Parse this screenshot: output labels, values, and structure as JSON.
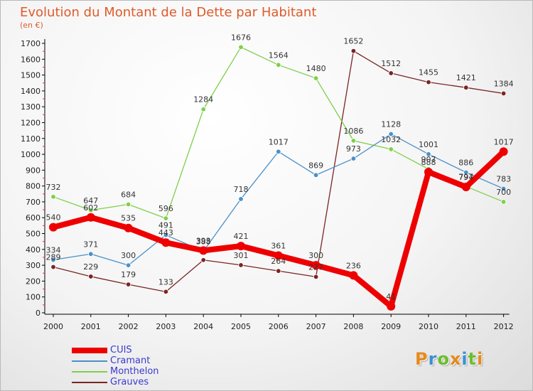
{
  "title": "Evolution du Montant de la Dette par Habitant",
  "unit": "(en €)",
  "logo": {
    "text": "Proxiti",
    "colors": [
      "#e68a1e",
      "#3b8fd1",
      "#6cbd2f",
      "#e68a1e",
      "#3b8fd1",
      "#6cbd2f",
      "#e68a1e"
    ]
  },
  "chart_data": {
    "type": "line",
    "title": "Evolution du Montant de la Dette par Habitant",
    "ylabel": "(en €)",
    "xlabel": "",
    "ylim": [
      0,
      1700
    ],
    "yticks": [
      0,
      100,
      200,
      300,
      400,
      500,
      600,
      700,
      800,
      900,
      1000,
      1100,
      1200,
      1300,
      1400,
      1500,
      1600,
      1700
    ],
    "x": [
      "2000",
      "2001",
      "2002",
      "2003",
      "2004",
      "2005",
      "2006",
      "2007",
      "2008",
      "2009",
      "2010",
      "2011",
      "2012"
    ],
    "legend_position": "bottom-left",
    "grid": false,
    "series": [
      {
        "name": "CUIS",
        "color": "#ee0000",
        "values": [
          540,
          602,
          535,
          443,
          393,
          421,
          361,
          300,
          236,
          41,
          888,
          794,
          1017
        ],
        "labels": [
          "540",
          "602",
          "535",
          "443",
          "393",
          "421",
          "361",
          "300",
          "236",
          "41",
          "888",
          "794",
          "1017"
        ]
      },
      {
        "name": "Cramant",
        "color": "#4a90c8",
        "values": [
          334,
          371,
          300,
          491,
          388,
          718,
          1017,
          869,
          973,
          1128,
          1001,
          886,
          783
        ],
        "labels": [
          "334",
          "371",
          "300",
          "491",
          "388",
          "718",
          "1017",
          "869",
          "973",
          "1128",
          "1001",
          "886",
          "783"
        ]
      },
      {
        "name": "Monthelon",
        "color": "#7ed04a",
        "values": [
          732,
          647,
          684,
          596,
          1284,
          1676,
          1564,
          1480,
          1086,
          1032,
          907,
          797,
          700
        ],
        "labels": [
          "732",
          "647",
          "684",
          "596",
          "1284",
          "1676",
          "1564",
          "1480",
          "1086",
          "1032",
          "907",
          "797",
          "700"
        ]
      },
      {
        "name": "Grauves",
        "color": "#7a2424",
        "values": [
          289,
          229,
          179,
          133,
          333,
          301,
          264,
          227,
          1652,
          1512,
          1455,
          1421,
          1384
        ],
        "labels": [
          "289",
          "229",
          "179",
          "133",
          "",
          "301",
          "264",
          "227",
          "1652",
          "1512",
          "1455",
          "1421",
          "1384"
        ]
      }
    ]
  }
}
